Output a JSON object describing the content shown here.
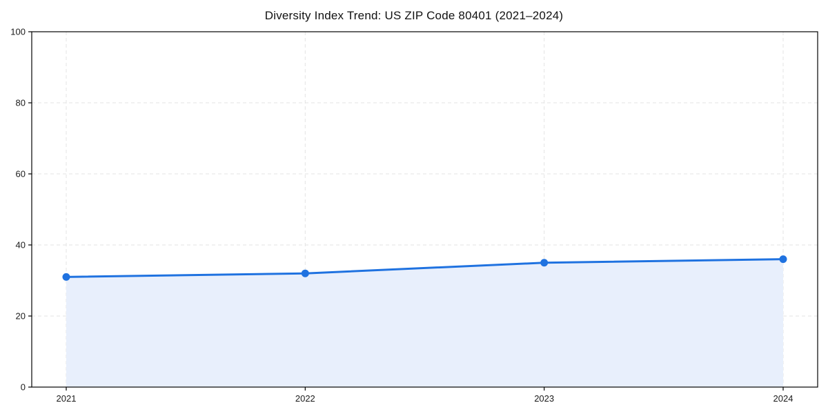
{
  "chart_data": {
    "type": "area",
    "title": "Diversity Index Trend: US ZIP Code 80401 (2021–2024)",
    "categories": [
      "2021",
      "2022",
      "2023",
      "2024"
    ],
    "series": [
      {
        "name": "Diversity Index",
        "values": [
          31,
          32,
          35,
          36
        ]
      }
    ],
    "xlabel": "",
    "ylabel": "",
    "ylim": [
      0,
      100
    ],
    "yticks": [
      0,
      20,
      40,
      60,
      80,
      100
    ],
    "grid": "dashed",
    "legend": "none",
    "colors": {
      "line": "#1f72e0",
      "marker": "#1f72e0",
      "fill": "#e8effc",
      "grid": "#e3e3e3",
      "axis": "#000000",
      "tick_text": "#1a1a1a",
      "background": "#ffffff"
    }
  }
}
